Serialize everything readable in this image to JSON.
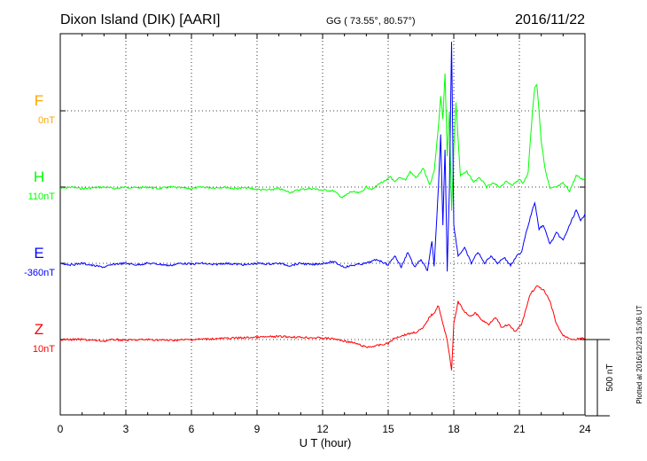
{
  "header": {
    "station": "Dixon Island (DIK)  [AARI]",
    "coords": "GG ( 73.55°,  80.57°)",
    "date": "2016/11/22"
  },
  "footer": {
    "plotted": "Plotted at 2016/12/23 15:06 UT"
  },
  "chart_data": {
    "type": "line",
    "xlabel": "U T (hour)",
    "xlim": [
      0,
      24
    ],
    "xticks": [
      "0",
      "3",
      "6",
      "9",
      "12",
      "15",
      "18",
      "21",
      "24"
    ],
    "scale_bar": {
      "label": "500 nT",
      "value": 500
    },
    "grid": true,
    "channels": [
      {
        "name": "F",
        "offset_label": "0nT",
        "color": "#ffa500",
        "baseline_units": 0,
        "values": []
      },
      {
        "name": "H",
        "offset_label": "110nT",
        "color": "#00ff00",
        "baseline_units": 1,
        "values": [
          [
            0,
            1.02
          ],
          [
            0.5,
            1.0
          ],
          [
            1,
            1.02
          ],
          [
            1.5,
            1.01
          ],
          [
            2,
            1.0
          ],
          [
            2.5,
            1.02
          ],
          [
            3,
            1.0
          ],
          [
            3.5,
            1.01
          ],
          [
            4,
            1.0
          ],
          [
            4.5,
            1.02
          ],
          [
            5,
            1.0
          ],
          [
            5.5,
            1.01
          ],
          [
            6,
            1.02
          ],
          [
            6.5,
            1.0
          ],
          [
            7,
            1.01
          ],
          [
            7.5,
            1.0
          ],
          [
            8,
            1.02
          ],
          [
            8.5,
            1.01
          ],
          [
            9,
            1.03
          ],
          [
            9.5,
            1.04
          ],
          [
            10,
            1.02
          ],
          [
            10.5,
            1.07
          ],
          [
            11,
            1.03
          ],
          [
            11.5,
            1.02
          ],
          [
            12,
            1.04
          ],
          [
            12.5,
            1.05
          ],
          [
            12.9,
            1.14
          ],
          [
            13.3,
            1.06
          ],
          [
            13.7,
            1.08
          ],
          [
            14.0,
            1.0
          ],
          [
            14.3,
            1.03
          ],
          [
            14.6,
            0.95
          ],
          [
            14.9,
            0.92
          ],
          [
            15.1,
            0.86
          ],
          [
            15.3,
            0.94
          ],
          [
            15.5,
            0.88
          ],
          [
            15.8,
            0.9
          ],
          [
            16.0,
            0.8
          ],
          [
            16.3,
            0.88
          ],
          [
            16.6,
            0.75
          ],
          [
            16.9,
            0.98
          ],
          [
            17.1,
            0.8
          ],
          [
            17.3,
            0.2
          ],
          [
            17.4,
            -0.2
          ],
          [
            17.5,
            0.1
          ],
          [
            17.6,
            -0.5
          ],
          [
            17.7,
            0.6
          ],
          [
            17.8,
            0.0
          ],
          [
            17.9,
            1.3
          ],
          [
            18.0,
            0.5
          ],
          [
            18.1,
            -0.1
          ],
          [
            18.3,
            0.85
          ],
          [
            18.6,
            0.8
          ],
          [
            18.9,
            0.93
          ],
          [
            19.2,
            0.88
          ],
          [
            19.5,
            1.0
          ],
          [
            19.8,
            0.95
          ],
          [
            20.1,
            1.0
          ],
          [
            20.4,
            0.93
          ],
          [
            20.7,
            0.97
          ],
          [
            21.0,
            0.9
          ],
          [
            21.2,
            0.95
          ],
          [
            21.4,
            0.8
          ],
          [
            21.5,
            0.4
          ],
          [
            21.6,
            0.0
          ],
          [
            21.7,
            -0.3
          ],
          [
            21.8,
            -0.35
          ],
          [
            21.9,
            0.0
          ],
          [
            22.0,
            0.4
          ],
          [
            22.2,
            0.8
          ],
          [
            22.4,
            1.02
          ],
          [
            22.7,
            1.0
          ],
          [
            23.0,
            0.95
          ],
          [
            23.3,
            1.05
          ],
          [
            23.6,
            0.85
          ],
          [
            23.9,
            0.9
          ],
          [
            24.0,
            0.88
          ]
        ]
      },
      {
        "name": "E",
        "offset_label": "-360nT",
        "color": "#0000ff",
        "baseline_units": 2,
        "values": [
          [
            0,
            2.0
          ],
          [
            0.5,
            2.02
          ],
          [
            1,
            2.0
          ],
          [
            1.5,
            2.03
          ],
          [
            2,
            2.05
          ],
          [
            2.5,
            2.01
          ],
          [
            3,
            2.0
          ],
          [
            3.5,
            2.02
          ],
          [
            4,
            2.0
          ],
          [
            4.5,
            2.01
          ],
          [
            5,
            2.03
          ],
          [
            5.5,
            2.0
          ],
          [
            6,
            2.01
          ],
          [
            6.5,
            2.0
          ],
          [
            7,
            2.02
          ],
          [
            7.5,
            2.0
          ],
          [
            8,
            2.01
          ],
          [
            8.5,
            2.02
          ],
          [
            9,
            2.0
          ],
          [
            9.5,
            2.01
          ],
          [
            10,
            2.0
          ],
          [
            10.5,
            2.03
          ],
          [
            11,
            2.0
          ],
          [
            11.5,
            2.02
          ],
          [
            12,
            2.0
          ],
          [
            12.5,
            1.98
          ],
          [
            13,
            2.05
          ],
          [
            13.5,
            2.02
          ],
          [
            14,
            2.0
          ],
          [
            14.5,
            1.95
          ],
          [
            15,
            2.02
          ],
          [
            15.3,
            1.9
          ],
          [
            15.6,
            2.05
          ],
          [
            15.9,
            1.85
          ],
          [
            16.2,
            2.05
          ],
          [
            16.5,
            1.95
          ],
          [
            16.8,
            2.1
          ],
          [
            17.0,
            1.7
          ],
          [
            17.1,
            2.05
          ],
          [
            17.3,
            1.0
          ],
          [
            17.4,
            0.3
          ],
          [
            17.5,
            1.5
          ],
          [
            17.6,
            0.5
          ],
          [
            17.7,
            2.1
          ],
          [
            17.8,
            1.0
          ],
          [
            17.9,
            -0.9
          ],
          [
            18.0,
            1.5
          ],
          [
            18.2,
            1.9
          ],
          [
            18.5,
            1.8
          ],
          [
            18.8,
            2.0
          ],
          [
            19.1,
            1.85
          ],
          [
            19.4,
            2.0
          ],
          [
            19.7,
            1.9
          ],
          [
            20.0,
            2.0
          ],
          [
            20.3,
            1.92
          ],
          [
            20.6,
            2.03
          ],
          [
            20.9,
            1.9
          ],
          [
            21.1,
            1.85
          ],
          [
            21.3,
            1.6
          ],
          [
            21.5,
            1.4
          ],
          [
            21.7,
            1.2
          ],
          [
            21.9,
            1.55
          ],
          [
            22.1,
            1.5
          ],
          [
            22.4,
            1.75
          ],
          [
            22.7,
            1.6
          ],
          [
            23.0,
            1.7
          ],
          [
            23.3,
            1.5
          ],
          [
            23.6,
            1.3
          ],
          [
            23.8,
            1.45
          ],
          [
            24.0,
            1.35
          ]
        ]
      },
      {
        "name": "Z",
        "offset_label": "10nT",
        "color": "#ff0000",
        "baseline_units": 3,
        "values": [
          [
            0,
            3.0
          ],
          [
            1,
            3.0
          ],
          [
            2,
            3.02
          ],
          [
            2.5,
            3.0
          ],
          [
            3,
            3.01
          ],
          [
            4,
            3.0
          ],
          [
            5,
            3.01
          ],
          [
            6,
            3.0
          ],
          [
            7,
            2.99
          ],
          [
            8,
            2.98
          ],
          [
            9,
            2.97
          ],
          [
            10,
            2.96
          ],
          [
            11,
            2.97
          ],
          [
            12,
            2.98
          ],
          [
            12.5,
            2.99
          ],
          [
            13,
            3.02
          ],
          [
            13.5,
            3.05
          ],
          [
            14,
            3.1
          ],
          [
            14.5,
            3.08
          ],
          [
            15,
            3.05
          ],
          [
            15.3,
            2.98
          ],
          [
            15.6,
            2.95
          ],
          [
            16.0,
            2.92
          ],
          [
            16.3,
            2.9
          ],
          [
            16.6,
            2.85
          ],
          [
            16.9,
            2.7
          ],
          [
            17.1,
            2.65
          ],
          [
            17.3,
            2.55
          ],
          [
            17.5,
            2.8
          ],
          [
            17.7,
            3.0
          ],
          [
            17.8,
            3.2
          ],
          [
            17.9,
            3.4
          ],
          [
            18.0,
            2.8
          ],
          [
            18.2,
            2.5
          ],
          [
            18.4,
            2.6
          ],
          [
            18.7,
            2.7
          ],
          [
            19.0,
            2.65
          ],
          [
            19.3,
            2.75
          ],
          [
            19.6,
            2.8
          ],
          [
            19.9,
            2.7
          ],
          [
            20.2,
            2.85
          ],
          [
            20.5,
            2.8
          ],
          [
            20.8,
            2.9
          ],
          [
            21.1,
            2.8
          ],
          [
            21.3,
            2.6
          ],
          [
            21.5,
            2.4
          ],
          [
            21.8,
            2.3
          ],
          [
            22.1,
            2.35
          ],
          [
            22.4,
            2.5
          ],
          [
            22.7,
            2.8
          ],
          [
            23.0,
            2.95
          ],
          [
            23.5,
            3.0
          ],
          [
            24.0,
            2.98
          ]
        ]
      }
    ]
  }
}
